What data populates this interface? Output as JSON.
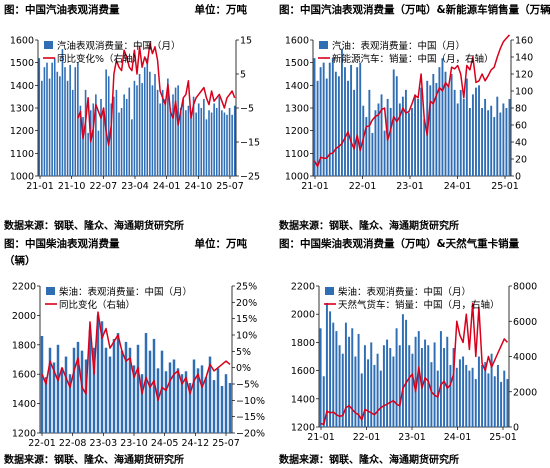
{
  "colors": {
    "bar": "#2f6eb5",
    "line": "#d9001b",
    "rule": "#000000"
  },
  "panels": [
    {
      "title": "图：中国汽油表观消费量",
      "unit": "单位：万吨",
      "title_line2": "",
      "source": "数据来源：钢联、隆众、海通期货研究所",
      "chart_data": {
        "type": "bar",
        "x_ticks": [
          "21-01",
          "21-10",
          "22-07",
          "23-04",
          "24-01",
          "24-10",
          "25-07"
        ],
        "left_axis": {
          "range": [
            1000,
            1600
          ],
          "ticks": [
            1000,
            1100,
            1200,
            1300,
            1400,
            1500,
            1600
          ]
        },
        "right_axis": {
          "range": [
            -25,
            15
          ],
          "ticks": [
            -25,
            -15,
            -5,
            5,
            15
          ]
        },
        "legend": "top-left",
        "series": [
          {
            "name": "汽油表观消费量：中国（月）",
            "axis": "left",
            "type": "bar",
            "values": [
              1520,
              1420,
              1480,
              1500,
              1430,
              1500,
              1520,
              1460,
              1440,
              1560,
              1480,
              1420,
              1490,
              1380,
              1480,
              1500,
              1310,
              1260,
              1380,
              1190,
              1290,
              1320,
              1360,
              1200,
              1340,
              1300,
              1470,
              1440,
              1320,
              1350,
              1380,
              1280,
              1300,
              1360,
              1340,
              1390,
              1250,
              1420,
              1400,
              1450,
              1410,
              1480,
              1520,
              1460,
              1400,
              1450,
              1380,
              1320,
              1380,
              1340,
              1430,
              1300,
              1360,
              1390,
              1400,
              1300,
              1340,
              1290,
              1310,
              1260,
              1350,
              1280,
              1320,
              1300,
              1340,
              1250,
              1290,
              1280,
              1320,
              1300,
              1350,
              1290,
              1280,
              1270,
              1300,
              1270,
              1310
            ]
          },
          {
            "name": "同比变化%（右轴）",
            "axis": "right",
            "type": "line",
            "x_start": 15,
            "values": [
              -8,
              -6,
              -14,
              -9,
              -2,
              -15,
              -11,
              -4,
              -6,
              -8,
              -5,
              -12,
              -16,
              -10,
              5,
              9,
              7,
              6,
              12,
              10,
              7,
              6,
              12,
              5,
              13,
              7,
              10,
              8,
              14,
              11,
              13,
              9,
              0,
              -2,
              -4,
              2,
              -6,
              -8,
              -3,
              -10,
              -6,
              -2,
              -1,
              3,
              -8,
              -4,
              -2,
              -1,
              0,
              1,
              -2,
              -4,
              0,
              -3,
              -2,
              -1,
              -3,
              -5,
              -2,
              -1,
              0,
              -2
            ]
          }
        ]
      }
    },
    {
      "title": "图：中国汽油表观消费量（万吨）&新能源车销售量（万辆）",
      "unit": "",
      "title_line2": "",
      "source": "数据来源：钢联、隆众、海通期货研究所",
      "chart_data": {
        "type": "bar",
        "x_ticks": [
          "21-01",
          "22-01",
          "23-01",
          "24-01",
          "25-01"
        ],
        "left_axis": {
          "range": [
            1000,
            1600
          ],
          "ticks": [
            1000,
            1100,
            1200,
            1300,
            1400,
            1500,
            1600
          ]
        },
        "right_axis": {
          "range": [
            0,
            160
          ],
          "ticks": [
            0,
            20,
            40,
            60,
            80,
            100,
            120,
            140,
            160
          ]
        },
        "legend": "top-left",
        "series": [
          {
            "name": "汽油：表观消费量：中国（月）",
            "axis": "left",
            "type": "bar",
            "values": [
              1520,
              1420,
              1480,
              1500,
              1430,
              1500,
              1520,
              1460,
              1440,
              1560,
              1480,
              1420,
              1490,
              1380,
              1480,
              1500,
              1310,
              1260,
              1380,
              1190,
              1290,
              1320,
              1360,
              1200,
              1340,
              1300,
              1470,
              1440,
              1320,
              1350,
              1380,
              1280,
              1300,
              1360,
              1340,
              1390,
              1250,
              1420,
              1400,
              1450,
              1410,
              1480,
              1520,
              1460,
              1400,
              1450,
              1380,
              1320,
              1380,
              1340,
              1430,
              1300,
              1360,
              1390,
              1400,
              1300,
              1340,
              1290,
              1310,
              1260,
              1350,
              1280,
              1320,
              1300,
              1340
            ]
          },
          {
            "name": "新能源汽车：销量：中国（月，右轴）",
            "axis": "right",
            "type": "line",
            "x_start": 0,
            "values": [
              18,
              11,
              22,
              21,
              21,
              26,
              27,
              32,
              35,
              38,
              45,
              52,
              40,
              32,
              48,
              30,
              44,
              58,
              59,
              66,
              70,
              72,
              78,
              80,
              42,
              55,
              70,
              64,
              70,
              80,
              74,
              76,
              85,
              95,
              92,
              120,
              68,
              48,
              88,
              85,
              95,
              104,
              100,
              110,
              105,
              128,
              126,
              130,
              120,
              92,
              130,
              125,
              140,
              110,
              112,
              120,
              112,
              118,
              125,
              128,
              140,
              150,
              158,
              162,
              166
            ]
          }
        ]
      }
    },
    {
      "title": "图：中国柴油表观消费量",
      "unit": "单位：万吨",
      "title_line2": "（辆）",
      "source": "数据来源：钢联、隆众、海通期货研究所",
      "chart_data": {
        "type": "bar",
        "x_ticks": [
          "22-01",
          "22-08",
          "23-03",
          "23-10",
          "24-05",
          "24-12",
          "25-07"
        ],
        "left_axis": {
          "range": [
            1200,
            2200
          ],
          "ticks": [
            1200,
            1400,
            1600,
            1800,
            2000,
            2200
          ]
        },
        "right_axis": {
          "range": [
            -20,
            25
          ],
          "ticks": [
            -20,
            -15,
            -10,
            -5,
            0,
            5,
            10,
            15,
            20,
            25
          ]
        },
        "legend": "top-left",
        "series": [
          {
            "name": "柴油：表观消费量：中国（月）",
            "axis": "left",
            "type": "bar",
            "values": [
              1860,
              1580,
              1780,
              1680,
              1800,
              1640,
              1720,
              1600,
              1780,
              1820,
              1760,
              1700,
              1900,
              1780,
              2000,
              1960,
              1780,
              1720,
              1840,
              1880,
              1760,
              1820,
              1780,
              1660,
              1800,
              1600,
              1880,
              1760,
              1840,
              1640,
              1760,
              1620,
              1680,
              1700,
              1640,
              1600,
              1620,
              1540,
              1700,
              1640,
              1660,
              1580,
              1720,
              1560,
              1640,
              1520,
              1600,
              1540
            ]
          },
          {
            "name": "同比变化（右轴）",
            "axis": "right",
            "type": "line",
            "x_start": 0,
            "values": [
              -2,
              -5,
              2,
              -1,
              -4,
              0,
              -3,
              -6,
              -1,
              3,
              -6,
              -8,
              14,
              -2,
              17,
              9,
              12,
              6,
              8,
              10,
              5,
              2,
              3,
              -3,
              0,
              -8,
              -3,
              -6,
              -4,
              -10,
              -6,
              -7,
              -4,
              -2,
              -1,
              -5,
              -3,
              -8,
              -4,
              -2,
              -6,
              -3,
              1,
              -1,
              0,
              1,
              2,
              1
            ]
          }
        ]
      }
    },
    {
      "title": "图：中国柴油表观消费量（万吨）&天然气重卡销量",
      "unit": "",
      "title_line2": "",
      "source": "数据来源：钢联、隆众、海通期货研究所",
      "chart_data": {
        "type": "bar",
        "x_ticks": [
          "21-01",
          "22-01",
          "23-01",
          "24-01",
          "25-01"
        ],
        "left_axis": {
          "range": [
            1200,
            2200
          ],
          "ticks": [
            1200,
            1400,
            1600,
            1800,
            2000,
            2200
          ]
        },
        "right_axis": {
          "range": [
            0,
            8000
          ],
          "ticks": [
            0,
            2000,
            4000,
            6000,
            8000
          ]
        },
        "legend": "top-left",
        "series": [
          {
            "name": "柴油：表观消费量：中国（月）",
            "axis": "left",
            "type": "bar",
            "values": [
              1900,
              1560,
              2080,
              2020,
              1940,
              1880,
              1780,
              1720,
              1940,
              1840,
              1900,
              1700,
              1860,
              1580,
              1780,
              1680,
              1800,
              1640,
              1720,
              1600,
              1780,
              1820,
              1760,
              1700,
              1900,
              1780,
              2000,
              1960,
              1780,
              1720,
              1840,
              1880,
              1760,
              1820,
              1780,
              1660,
              1800,
              1600,
              1880,
              1760,
              1840,
              1640,
              1760,
              1620,
              1680,
              1700,
              1640,
              1600,
              1620,
              1540,
              1700,
              1640,
              1660,
              1580,
              1720,
              1560,
              1640,
              1520,
              1600,
              1540
            ]
          },
          {
            "name": "天然气货车：销量：中国（月，右轴）",
            "axis": "right",
            "type": "line",
            "x_start": 0,
            "values": [
              200,
              150,
              900,
              800,
              850,
              700,
              600,
              650,
              1100,
              1200,
              1000,
              800,
              700,
              400,
              1000,
              900,
              800,
              700,
              900,
              1100,
              1200,
              1300,
              1400,
              1500,
              1300,
              1200,
              2200,
              2500,
              2800,
              3000,
              2000,
              3400,
              2200,
              2800,
              2600,
              2000,
              1800,
              1700,
              2400,
              2600,
              2200,
              2400,
              3000,
              6000,
              5200,
              4800,
              6400,
              4400,
              7000,
              4000,
              6800,
              3600,
              3200,
              4000,
              3400,
              3800,
              4200,
              4600,
              5000,
              4800
            ]
          }
        ]
      }
    }
  ]
}
